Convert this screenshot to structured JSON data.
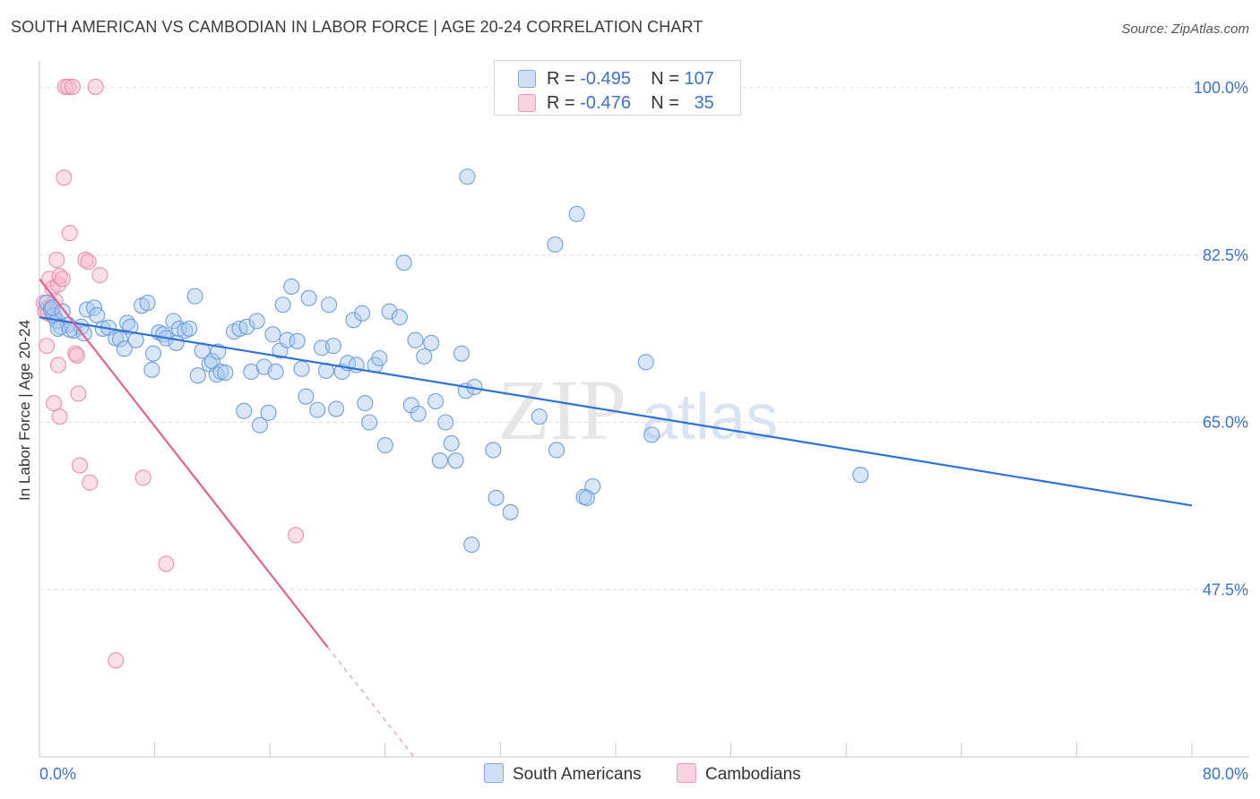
{
  "header": {
    "title": "SOUTH AMERICAN VS CAMBODIAN IN LABOR FORCE | AGE 20-24 CORRELATION CHART",
    "source": "Source: ZipAtlas.com"
  },
  "legend": {
    "series": [
      {
        "r_label": "R =",
        "r_value": "-0.495",
        "n_label": "N =",
        "n_value": "107",
        "color": "#a9c7ee"
      },
      {
        "r_label": "R =",
        "r_value": "-0.476",
        "n_label": "N =",
        "n_value": "35",
        "color": "#f6b8cc"
      }
    ]
  },
  "watermark": {
    "zip": "ZIP",
    "atlas": "atlas"
  },
  "colors": {
    "blue_fill": "#a9c7ee",
    "blue_stroke": "#6f9fde",
    "blue_line": "#2f72d2",
    "pink_fill": "#f6b8cc",
    "pink_stroke": "#ec8fae",
    "pink_line": "#e0628f",
    "grid": "#dddddd",
    "axis_text": "#3a73c8"
  },
  "chart_data": {
    "type": "scatter",
    "title": "SOUTH AMERICAN VS CAMBODIAN IN LABOR FORCE | AGE 20-24 CORRELATION CHART",
    "xlabel": "",
    "ylabel": "In Labor Force | Age 20-24",
    "xlim": [
      0,
      80
    ],
    "ylim": [
      30,
      102
    ],
    "x_tick_labels": [
      "0.0%",
      "80.0%"
    ],
    "y_ticks": [
      47.5,
      65.0,
      82.5,
      100.0
    ],
    "y_tick_labels": [
      "47.5%",
      "65.0%",
      "82.5%",
      "100.0%"
    ],
    "series": [
      {
        "name": "South Americans",
        "r": -0.495,
        "n": 107,
        "trend": {
          "x": [
            0,
            80
          ],
          "y": [
            76.0,
            56.3
          ],
          "style": "solid"
        },
        "points": [
          [
            0.5,
            77.5
          ],
          [
            0.8,
            76.8
          ],
          [
            1.0,
            76.2
          ],
          [
            1.2,
            75.6
          ],
          [
            1.5,
            75.0
          ],
          [
            0.9,
            77.0
          ],
          [
            1.6,
            76.6
          ],
          [
            2.0,
            75.2
          ],
          [
            2.4,
            74.6
          ],
          [
            2.9,
            75.0
          ],
          [
            3.1,
            74.3
          ],
          [
            1.3,
            74.8
          ],
          [
            2.1,
            74.7
          ],
          [
            3.3,
            76.8
          ],
          [
            3.8,
            77.0
          ],
          [
            4.0,
            76.2
          ],
          [
            4.4,
            74.8
          ],
          [
            4.8,
            74.9
          ],
          [
            5.3,
            73.8
          ],
          [
            5.6,
            73.7
          ],
          [
            5.9,
            72.7
          ],
          [
            6.1,
            75.4
          ],
          [
            6.3,
            75.0
          ],
          [
            6.7,
            73.6
          ],
          [
            7.1,
            77.2
          ],
          [
            7.5,
            77.5
          ],
          [
            7.8,
            70.5
          ],
          [
            7.9,
            72.2
          ],
          [
            8.3,
            74.4
          ],
          [
            8.6,
            74.2
          ],
          [
            8.8,
            73.8
          ],
          [
            9.3,
            75.6
          ],
          [
            9.5,
            73.3
          ],
          [
            9.7,
            74.8
          ],
          [
            10.1,
            74.6
          ],
          [
            10.4,
            74.8
          ],
          [
            10.8,
            78.2
          ],
          [
            11.0,
            69.9
          ],
          [
            11.3,
            72.5
          ],
          [
            11.8,
            71.1
          ],
          [
            12.0,
            71.4
          ],
          [
            12.4,
            72.4
          ],
          [
            12.3,
            70.0
          ],
          [
            12.6,
            70.3
          ],
          [
            12.9,
            70.2
          ],
          [
            13.5,
            74.5
          ],
          [
            13.9,
            74.8
          ],
          [
            14.2,
            66.2
          ],
          [
            14.4,
            75.0
          ],
          [
            14.7,
            70.3
          ],
          [
            15.1,
            75.6
          ],
          [
            15.3,
            64.7
          ],
          [
            15.6,
            70.8
          ],
          [
            15.9,
            66.0
          ],
          [
            16.2,
            74.2
          ],
          [
            16.4,
            70.3
          ],
          [
            16.7,
            72.5
          ],
          [
            16.9,
            77.3
          ],
          [
            17.2,
            73.6
          ],
          [
            17.5,
            79.2
          ],
          [
            17.9,
            73.5
          ],
          [
            18.2,
            70.6
          ],
          [
            18.5,
            67.7
          ],
          [
            18.7,
            78.0
          ],
          [
            19.3,
            66.3
          ],
          [
            19.6,
            72.8
          ],
          [
            19.9,
            70.4
          ],
          [
            20.1,
            77.3
          ],
          [
            20.4,
            73.0
          ],
          [
            20.6,
            66.4
          ],
          [
            21.0,
            70.3
          ],
          [
            21.4,
            71.2
          ],
          [
            21.8,
            75.7
          ],
          [
            22.0,
            71.0
          ],
          [
            22.4,
            76.4
          ],
          [
            22.6,
            67.0
          ],
          [
            22.9,
            65.0
          ],
          [
            23.3,
            71.0
          ],
          [
            23.6,
            71.7
          ],
          [
            24.0,
            62.6
          ],
          [
            24.3,
            76.6
          ],
          [
            25.0,
            76.0
          ],
          [
            25.3,
            81.7
          ],
          [
            25.8,
            66.8
          ],
          [
            26.1,
            73.6
          ],
          [
            26.3,
            65.9
          ],
          [
            26.7,
            71.9
          ],
          [
            27.2,
            73.3
          ],
          [
            27.5,
            67.2
          ],
          [
            27.8,
            61.0
          ],
          [
            28.2,
            65.0
          ],
          [
            28.6,
            62.8
          ],
          [
            28.9,
            61.0
          ],
          [
            29.3,
            72.2
          ],
          [
            29.6,
            68.3
          ],
          [
            29.7,
            90.7
          ],
          [
            30.2,
            68.7
          ],
          [
            31.5,
            62.1
          ],
          [
            31.7,
            57.1
          ],
          [
            32.7,
            55.6
          ],
          [
            34.7,
            65.6
          ],
          [
            35.8,
            83.6
          ],
          [
            35.9,
            62.1
          ],
          [
            37.8,
            57.2
          ],
          [
            38.4,
            58.3
          ],
          [
            42.1,
            71.3
          ],
          [
            37.3,
            86.8
          ],
          [
            42.5,
            63.7
          ],
          [
            57.0,
            59.5
          ],
          [
            30.0,
            52.2
          ],
          [
            38.0,
            57.1
          ]
        ]
      },
      {
        "name": "Cambodians",
        "r": -0.476,
        "n": 35,
        "trend": {
          "x": [
            0,
            20
          ],
          "y": [
            80.0,
            41.5
          ],
          "style": "solid",
          "dashed_extension": {
            "x": [
              20,
              26
            ],
            "y": [
              41.5,
              30
            ]
          }
        },
        "points": [
          [
            0.3,
            77.5
          ],
          [
            0.5,
            76.9
          ],
          [
            0.6,
            76.4
          ],
          [
            0.8,
            77.0
          ],
          [
            0.4,
            76.6
          ],
          [
            1.0,
            76.1
          ],
          [
            0.7,
            80.0
          ],
          [
            0.9,
            79.0
          ],
          [
            1.1,
            77.7
          ],
          [
            1.3,
            79.4
          ],
          [
            1.2,
            82.0
          ],
          [
            1.4,
            80.3
          ],
          [
            1.6,
            80.0
          ],
          [
            1.7,
            90.6
          ],
          [
            1.8,
            100.1
          ],
          [
            2.0,
            100.1
          ],
          [
            2.1,
            84.8
          ],
          [
            2.3,
            100.1
          ],
          [
            2.5,
            72.2
          ],
          [
            2.6,
            72.0
          ],
          [
            2.7,
            68.0
          ],
          [
            2.8,
            60.5
          ],
          [
            3.2,
            82.0
          ],
          [
            3.4,
            81.8
          ],
          [
            3.5,
            58.7
          ],
          [
            3.9,
            100.1
          ],
          [
            4.2,
            80.4
          ],
          [
            0.5,
            73.0
          ],
          [
            1.0,
            67.0
          ],
          [
            1.3,
            71.0
          ],
          [
            1.4,
            65.6
          ],
          [
            7.2,
            59.2
          ],
          [
            8.8,
            50.2
          ],
          [
            17.8,
            53.2
          ],
          [
            5.3,
            40.1
          ]
        ]
      }
    ]
  },
  "bottom_legend": {
    "items": [
      {
        "label": "South Americans"
      },
      {
        "label": "Cambodians"
      }
    ]
  }
}
